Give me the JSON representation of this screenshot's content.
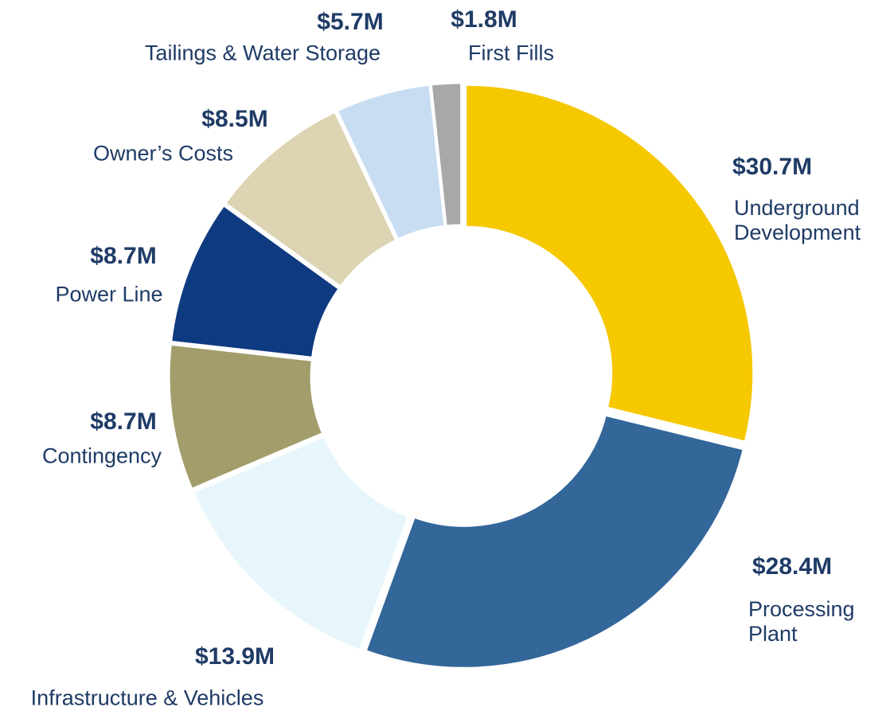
{
  "chart_data": {
    "type": "donut",
    "categories": [
      "Underground Development",
      "Processing Plant",
      "Infrastructure & Vehicles",
      "Contingency",
      "Power Line",
      "Owner’s Costs",
      "Tailings & Water Storage",
      "First Fills"
    ],
    "values": [
      30.7,
      28.4,
      13.9,
      8.7,
      8.7,
      8.5,
      5.7,
      1.8
    ],
    "value_labels": [
      "$30.7M",
      "$28.4M",
      "$13.9M",
      "$8.7M",
      "$8.7M",
      "$8.5M",
      "$5.7M",
      "$1.8M"
    ],
    "colors": [
      "#f5c800",
      "#336699",
      "#e6f6fb",
      "#a39c6b",
      "#0e3a80",
      "#dcd4b2",
      "#c8ddf2",
      "#a8a8a8"
    ]
  }
}
